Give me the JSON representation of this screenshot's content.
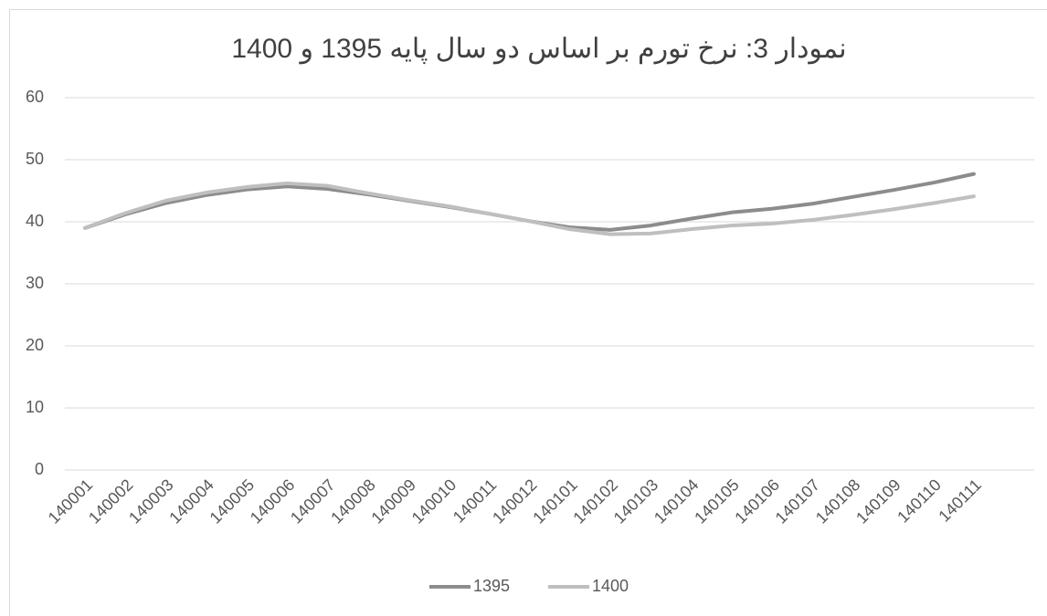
{
  "chart_data": {
    "type": "line",
    "title": "نمودار 3: نرخ تورم بر اساس دو سال پایه 1395 و 1400",
    "categories": [
      "140001",
      "140002",
      "140003",
      "140004",
      "140005",
      "140006",
      "140007",
      "140008",
      "140009",
      "140010",
      "140011",
      "140012",
      "140101",
      "140102",
      "140103",
      "140104",
      "140105",
      "140106",
      "140107",
      "140108",
      "140109",
      "140110",
      "140111"
    ],
    "series": [
      {
        "name": "1395",
        "color": "#8c8c8c",
        "values": [
          39,
          41.2,
          43,
          44.3,
          45.2,
          45.7,
          45.3,
          44.4,
          43.4,
          42.4,
          41.3,
          40.1,
          39.1,
          38.7,
          39.4,
          40.5,
          41.5,
          42.1,
          42.9,
          44.0,
          45.1,
          46.3,
          47.7
        ]
      },
      {
        "name": "1400",
        "color": "#bfbfbf",
        "values": [
          39,
          41.4,
          43.4,
          44.7,
          45.6,
          46.2,
          45.8,
          44.6,
          43.5,
          42.5,
          41.3,
          40.1,
          38.8,
          38.0,
          38.1,
          38.8,
          39.4,
          39.7,
          40.3,
          41.1,
          42.0,
          43.0,
          44.1
        ]
      }
    ],
    "ylim": [
      0,
      60
    ],
    "yticks": [
      0,
      10,
      20,
      30,
      40,
      50,
      60
    ],
    "grid": true,
    "legend": "bottom"
  }
}
